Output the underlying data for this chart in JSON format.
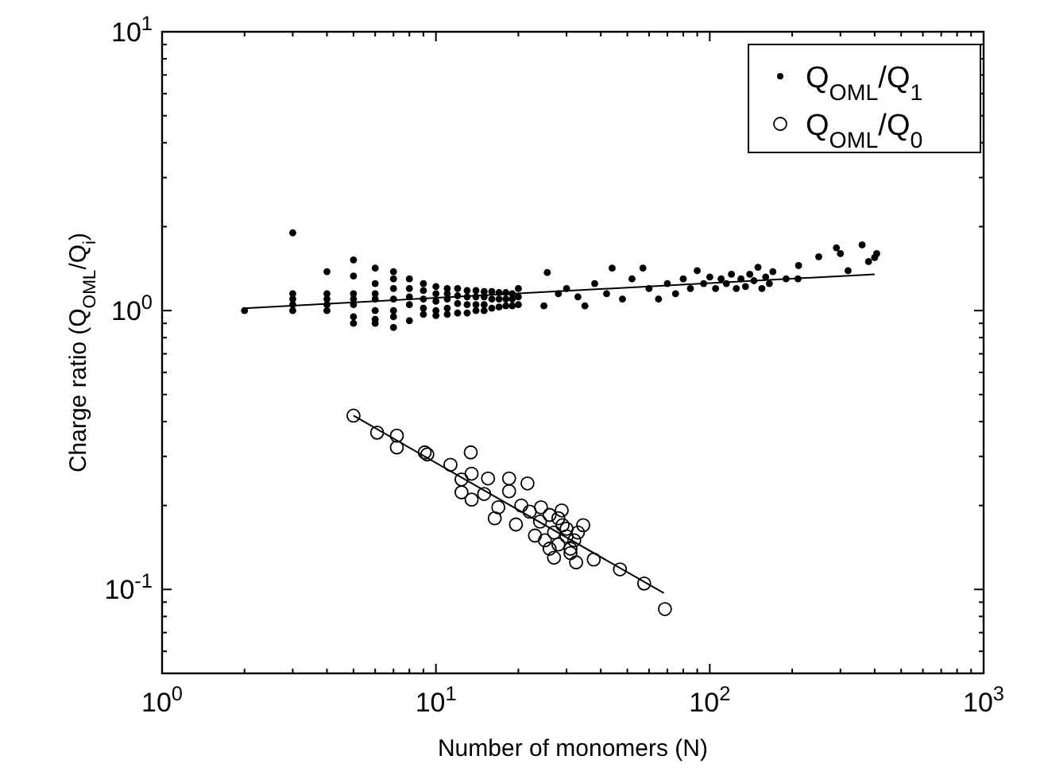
{
  "chart_data": {
    "type": "scatter",
    "xlabel": "Number of monomers (N)",
    "ylabel": "Charge ratio (Q$_{OML}$/Q$_{i}$)",
    "log": "xy",
    "grid": false,
    "legend": "top right",
    "xlim": [
      1,
      1000
    ],
    "ylim": [
      0.05,
      10
    ],
    "xticks": [
      {
        "value": 1,
        "label": "10$^{0}$"
      },
      {
        "value": 2,
        "label": null
      },
      {
        "value": 3,
        "label": null
      },
      {
        "value": 4,
        "label": null
      },
      {
        "value": 5,
        "label": null
      },
      {
        "value": 6,
        "label": null
      },
      {
        "value": 7,
        "label": null
      },
      {
        "value": 8,
        "label": null
      },
      {
        "value": 9,
        "label": null
      },
      {
        "value": 10,
        "label": "10$^{1}$"
      },
      {
        "value": 20,
        "label": null
      },
      {
        "value": 30,
        "label": null
      },
      {
        "value": 40,
        "label": null
      },
      {
        "value": 50,
        "label": null
      },
      {
        "value": 60,
        "label": null
      },
      {
        "value": 70,
        "label": null
      },
      {
        "value": 80,
        "label": null
      },
      {
        "value": 90,
        "label": null
      },
      {
        "value": 100,
        "label": "10$^{2}$"
      },
      {
        "value": 200,
        "label": null
      },
      {
        "value": 300,
        "label": null
      },
      {
        "value": 400,
        "label": null
      },
      {
        "value": 500,
        "label": null
      },
      {
        "value": 600,
        "label": null
      },
      {
        "value": 700,
        "label": null
      },
      {
        "value": 800,
        "label": null
      },
      {
        "value": 900,
        "label": null
      },
      {
        "value": 1000,
        "label": "10$^{3}$"
      }
    ],
    "yticks": [
      {
        "value": 0.06,
        "label": null
      },
      {
        "value": 0.07,
        "label": null
      },
      {
        "value": 0.08,
        "label": null
      },
      {
        "value": 0.09,
        "label": null
      },
      {
        "value": 0.1,
        "label": "10$^{-1}$"
      },
      {
        "value": 0.2,
        "label": null
      },
      {
        "value": 0.3,
        "label": null
      },
      {
        "value": 0.4,
        "label": null
      },
      {
        "value": 0.5,
        "label": null
      },
      {
        "value": 0.6,
        "label": null
      },
      {
        "value": 0.7,
        "label": null
      },
      {
        "value": 0.8,
        "label": null
      },
      {
        "value": 0.9,
        "label": null
      },
      {
        "value": 1,
        "label": "10$^{0}$"
      },
      {
        "value": 2,
        "label": null
      },
      {
        "value": 3,
        "label": null
      },
      {
        "value": 4,
        "label": null
      },
      {
        "value": 5,
        "label": null
      },
      {
        "value": 6,
        "label": null
      },
      {
        "value": 7,
        "label": null
      },
      {
        "value": 8,
        "label": null
      },
      {
        "value": 9,
        "label": null
      },
      {
        "value": 10,
        "label": "10$^{1}$"
      }
    ],
    "series": [
      {
        "name": "Q$_{OML}$/Q$_{1}$",
        "marker": "circle",
        "color": "#000000",
        "x": [
          2,
          3,
          3,
          3,
          3,
          3,
          4,
          4,
          4,
          4,
          4,
          5,
          5,
          5,
          5,
          5,
          5,
          5,
          6,
          6,
          6,
          6,
          6,
          6,
          6,
          7,
          7,
          7,
          7,
          7,
          7,
          7,
          8,
          8,
          8,
          8,
          8,
          9,
          9,
          9,
          9,
          9,
          10,
          10,
          10,
          10,
          10,
          11,
          11,
          11,
          11,
          11,
          12,
          12,
          12,
          12,
          13,
          13,
          13,
          13,
          14,
          14,
          14,
          14,
          15,
          15,
          15,
          15,
          16,
          16,
          16,
          17,
          17,
          17,
          18,
          18,
          18,
          19,
          19,
          19,
          20,
          20,
          20,
          25.5,
          24.8,
          28,
          30,
          33,
          35,
          38,
          44,
          42,
          48,
          52,
          57,
          60,
          65,
          70,
          75,
          80,
          90,
          85,
          95,
          100,
          105,
          110,
          115,
          120,
          125,
          130,
          135,
          140,
          145,
          150,
          155,
          160,
          165,
          170,
          190,
          211,
          210,
          250,
          290,
          300,
          320,
          360,
          380,
          407,
          400
        ],
        "values": [
          1.0,
          1.9,
          1.15,
          1.1,
          1.05,
          1.0,
          1.38,
          1.15,
          1.1,
          1.05,
          1.0,
          1.52,
          1.33,
          1.15,
          1.1,
          1.05,
          0.95,
          0.9,
          1.42,
          1.25,
          1.15,
          1.1,
          1.0,
          0.93,
          0.9,
          1.38,
          1.3,
          1.2,
          1.1,
          1.0,
          0.95,
          0.87,
          1.3,
          1.2,
          1.12,
          1.05,
          0.92,
          1.25,
          1.18,
          1.1,
          1.02,
          0.97,
          1.22,
          1.15,
          1.08,
          1.0,
          0.96,
          1.2,
          1.15,
          1.1,
          1.02,
          0.97,
          1.2,
          1.13,
          1.06,
          0.98,
          1.18,
          1.12,
          1.05,
          0.98,
          1.18,
          1.12,
          1.05,
          1.0,
          1.17,
          1.12,
          1.05,
          1.0,
          1.17,
          1.1,
          1.02,
          1.16,
          1.1,
          1.03,
          1.16,
          1.1,
          1.04,
          1.15,
          1.1,
          1.04,
          1.2,
          1.12,
          1.05,
          1.37,
          1.04,
          1.15,
          1.2,
          1.12,
          1.04,
          1.25,
          1.42,
          1.15,
          1.1,
          1.3,
          1.42,
          1.2,
          1.1,
          1.25,
          1.15,
          1.3,
          1.39,
          1.2,
          1.25,
          1.32,
          1.2,
          1.3,
          1.25,
          1.35,
          1.2,
          1.3,
          1.22,
          1.35,
          1.28,
          1.43,
          1.2,
          1.32,
          1.25,
          1.38,
          1.3,
          1.45,
          1.3,
          1.56,
          1.68,
          1.6,
          1.39,
          1.72,
          1.5,
          1.6,
          1.55
        ]
      },
      {
        "name": "Q$_{OML}$/Q$_{0}$",
        "marker": "circle",
        "x": [
          5,
          6.1,
          7.2,
          7.2,
          9.3,
          9.1,
          11.3,
          13.4,
          12.4,
          12.4,
          13.5,
          13.5,
          15.5,
          15,
          18.5,
          18.5,
          21.6,
          16.9,
          16.4,
          19.6,
          20.5,
          24.2,
          23,
          28.8,
          34.5,
          32.5,
          37.7,
          47,
          57.6,
          68.6,
          25,
          26,
          27,
          28,
          29,
          30,
          31,
          32,
          24,
          26,
          28,
          30,
          33,
          22,
          27,
          31
        ],
        "values": [
          0.42,
          0.365,
          0.356,
          0.323,
          0.305,
          0.31,
          0.28,
          0.31,
          0.248,
          0.223,
          0.26,
          0.21,
          0.25,
          0.22,
          0.25,
          0.225,
          0.24,
          0.197,
          0.18,
          0.171,
          0.2,
          0.197,
          0.156,
          0.192,
          0.17,
          0.125,
          0.128,
          0.118,
          0.105,
          0.085,
          0.15,
          0.14,
          0.16,
          0.145,
          0.17,
          0.155,
          0.135,
          0.15,
          0.175,
          0.185,
          0.18,
          0.165,
          0.16,
          0.19,
          0.13,
          0.14
        ]
      },
      {
        "type": "line",
        "color": "#000000",
        "x": [
          2,
          400
        ],
        "values": [
          1.02,
          1.35
        ]
      },
      {
        "type": "line",
        "color": "#000000",
        "x": [
          5,
          68
        ],
        "values": [
          0.42,
          0.097
        ]
      }
    ]
  }
}
